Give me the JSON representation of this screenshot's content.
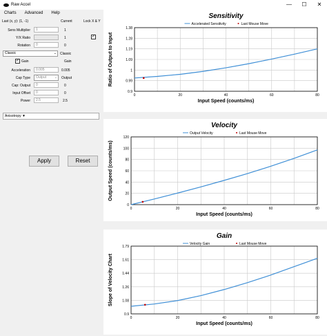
{
  "window": {
    "title": "Raw Accel",
    "minimize": "—",
    "maximize": "☐",
    "close": "✕"
  },
  "menu": [
    "Charts",
    "Advanced",
    "Help"
  ],
  "panel": {
    "last_label": "Last (x, y): (1, -1)",
    "current_header": "Current",
    "lock_label": "Lock X & Y",
    "sens_label": "Sens Multiplier",
    "sens_value": "1",
    "sens_current": "1",
    "yx_label": "Y/X Ratio",
    "yx_current": "1",
    "rotation_label": "Rotation",
    "rotation_value": "0",
    "rotation_current": "0",
    "mode_select": "Classic",
    "mode_current": "Classic",
    "gain_label": "Gain",
    "gain_current": "Gain",
    "accel_label": "Acceleration",
    "accel_value": "0.005",
    "accel_current": "0.005",
    "cap_type_label": "Cap Type",
    "cap_type_value": "Output",
    "cap_type_current": "Output",
    "cap_output_label": "Cap: Output",
    "cap_output_value": "0",
    "cap_output_current": "0",
    "input_offset_label": "Input Offset",
    "input_offset_value": "0",
    "input_offset_current": "0",
    "power_label": "Power",
    "power_value": "2.5",
    "power_current": "2.5",
    "anisotropy": "Anisotropy ▼",
    "apply": "Apply",
    "reset": "Reset"
  },
  "chart_data": [
    {
      "type": "line",
      "title": "Sensitivity",
      "xlabel": "Input Speed (counts/ms)",
      "ylabel": "Ratio of Output to Input",
      "xlim": [
        0,
        80
      ],
      "ylim": [
        0.9,
        1.38
      ],
      "xticks": [
        "0",
        "20",
        "40",
        "60",
        "80"
      ],
      "yticks": [
        "0.9",
        "0.99",
        "1",
        "1.09",
        "1.19",
        "1.28",
        "1.38"
      ],
      "legend": [
        "Accelerated Sensitivity",
        "Last Mouse Move"
      ],
      "series": [
        {
          "name": "Accelerated Sensitivity",
          "x": [
            0,
            10,
            20,
            30,
            40,
            50,
            60,
            70,
            80
          ],
          "y": [
            1.0,
            1.012,
            1.028,
            1.05,
            1.077,
            1.108,
            1.143,
            1.18,
            1.22
          ]
        }
      ],
      "marker": {
        "name": "Last Mouse Move",
        "x": 4,
        "y": 1.0
      },
      "colors": {
        "line": "#3f8fd6",
        "marker": "#c00000"
      }
    },
    {
      "type": "line",
      "title": "Velocity",
      "xlabel": "Input Speed (counts/ms)",
      "ylabel": "Output Speed (counts/ms)",
      "xlim": [
        0,
        80
      ],
      "ylim": [
        0,
        120
      ],
      "xticks": [
        "0",
        "20",
        "40",
        "60",
        "80"
      ],
      "yticks": [
        "0",
        "20",
        "40",
        "60",
        "80",
        "100",
        "120"
      ],
      "legend": [
        "Output Velocity",
        "Last Mouse Move"
      ],
      "series": [
        {
          "name": "Output Velocity",
          "x": [
            0,
            10,
            20,
            30,
            40,
            50,
            60,
            70,
            80
          ],
          "y": [
            0,
            10,
            20.5,
            31.5,
            43,
            55,
            68,
            82,
            97
          ]
        }
      ],
      "marker": {
        "name": "Last Mouse Move",
        "x": 5,
        "y": 5
      },
      "colors": {
        "line": "#3f8fd6",
        "marker": "#c00000"
      }
    },
    {
      "type": "line",
      "title": "Gain",
      "xlabel": "Input Speed (counts/ms)",
      "ylabel": "Slope of Velocity Chart",
      "xlim": [
        0,
        80
      ],
      "ylim": [
        0.9,
        1.79
      ],
      "xticks": [
        "0",
        "20",
        "40",
        "60",
        "80"
      ],
      "yticks": [
        "0.9",
        "1.08",
        "1.26",
        "1.44",
        "1.61",
        "1.79"
      ],
      "legend": [
        "Velocity Gain",
        "Last Mouse Move"
      ],
      "series": [
        {
          "name": "Velocity Gain",
          "x": [
            0,
            10,
            20,
            30,
            40,
            50,
            60,
            70,
            80
          ],
          "y": [
            1.0,
            1.03,
            1.075,
            1.14,
            1.22,
            1.31,
            1.41,
            1.52,
            1.63
          ]
        }
      ],
      "marker": {
        "name": "Last Mouse Move",
        "x": 6,
        "y": 1.02
      },
      "colors": {
        "line": "#3f8fd6",
        "marker": "#c00000"
      }
    }
  ]
}
